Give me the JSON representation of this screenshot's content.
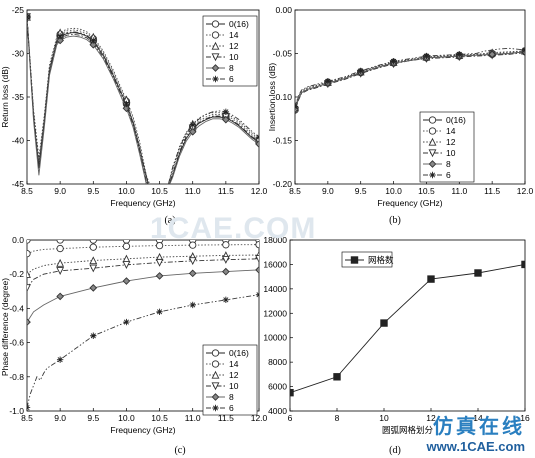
{
  "watermark": "1CAE.COM",
  "brand": {
    "chinese": "仿真在线",
    "url": "www.1CAE.com"
  },
  "chart_data": [
    {
      "type": "line",
      "panel": "(a)",
      "xlabel": "Frequency (GHz)",
      "ylabel": "Return loss (dB)",
      "xlim": [
        8.5,
        12.0
      ],
      "ylim": [
        -45,
        -25
      ],
      "xticks": [
        "8.5",
        "9.0",
        "9.5",
        "10.0",
        "10.5",
        "11.0",
        "11.5",
        "12.0"
      ],
      "yticks": [
        "-25",
        "-30",
        "-35",
        "-40",
        "-45"
      ],
      "legend_position": "top-right",
      "series": [
        {
          "name": "0(16)",
          "marker": "circle",
          "dash": "solid",
          "x": [
            8.5,
            8.6,
            8.68,
            8.76,
            8.84,
            8.95,
            9.0,
            9.1,
            9.2,
            9.3,
            9.4,
            9.5,
            9.65,
            9.8,
            9.95,
            10.0,
            10.1,
            10.2,
            10.33,
            10.4,
            10.5,
            10.6,
            10.7,
            10.8,
            10.9,
            11.0,
            11.1,
            11.2,
            11.3,
            11.4,
            11.5,
            11.6,
            11.7,
            11.8,
            11.9,
            12.0
          ],
          "y": [
            -25.8,
            -37.5,
            -43.0,
            -38.0,
            -32.0,
            -28.6,
            -28.1,
            -27.7,
            -27.6,
            -27.7,
            -28.0,
            -28.6,
            -30.2,
            -32.5,
            -35.0,
            -35.8,
            -38.0,
            -41.0,
            -45.0,
            -46,
            -46,
            -46,
            -44.0,
            -41.5,
            -39.8,
            -38.7,
            -38.0,
            -37.6,
            -37.3,
            -37.3,
            -37.4,
            -37.8,
            -38.3,
            -39.0,
            -39.7,
            -40.2
          ]
        },
        {
          "name": "14",
          "marker": "circle",
          "dash": "dot",
          "x": [
            8.5,
            8.6,
            8.68,
            8.76,
            8.84,
            8.95,
            9.0,
            9.1,
            9.2,
            9.3,
            9.4,
            9.5,
            9.65,
            9.8,
            9.95,
            10.0,
            10.1,
            10.2,
            10.3,
            10.4,
            10.5,
            10.6,
            10.7,
            10.8,
            10.9,
            11.0,
            11.1,
            11.2,
            11.3,
            11.4,
            11.5,
            11.6,
            11.7,
            11.8,
            11.9,
            12.0
          ],
          "y": [
            -25.8,
            -37.0,
            -42.5,
            -37.5,
            -31.6,
            -28.3,
            -27.8,
            -27.4,
            -27.3,
            -27.4,
            -27.7,
            -28.3,
            -29.9,
            -32.1,
            -34.7,
            -35.5,
            -37.6,
            -40.6,
            -44.5,
            -46,
            -46,
            -46,
            -43.5,
            -41.0,
            -39.4,
            -38.4,
            -37.7,
            -37.3,
            -37.0,
            -37.0,
            -37.1,
            -37.5,
            -38.0,
            -38.7,
            -39.4,
            -40.0
          ]
        },
        {
          "name": "12",
          "marker": "triangle-up",
          "dash": "dot",
          "x": [
            8.5,
            8.6,
            8.68,
            8.76,
            8.84,
            8.95,
            9.0,
            9.1,
            9.2,
            9.3,
            9.4,
            9.5,
            9.65,
            9.8,
            9.95,
            10.0,
            10.1,
            10.2,
            10.3,
            10.4,
            10.5,
            10.6,
            10.7,
            10.8,
            10.9,
            11.0,
            11.1,
            11.2,
            11.3,
            11.4,
            11.5,
            11.6,
            11.7,
            11.8,
            11.9,
            12.0
          ],
          "y": [
            -25.8,
            -36.5,
            -42.0,
            -37.2,
            -31.3,
            -28.1,
            -27.6,
            -27.2,
            -27.1,
            -27.2,
            -27.5,
            -28.1,
            -29.7,
            -31.9,
            -34.5,
            -35.3,
            -37.3,
            -40.2,
            -44.0,
            -46,
            -46,
            -46,
            -43.2,
            -40.7,
            -39.1,
            -38.1,
            -37.4,
            -37.0,
            -36.8,
            -36.8,
            -36.9,
            -37.3,
            -37.8,
            -38.5,
            -39.2,
            -39.8
          ]
        },
        {
          "name": "10",
          "marker": "triangle-down",
          "dash": "dashdot",
          "x": [
            8.5,
            8.6,
            8.68,
            8.76,
            8.84,
            8.95,
            9.0,
            9.1,
            9.2,
            9.3,
            9.4,
            9.5,
            9.65,
            9.8,
            9.95,
            10.0,
            10.1,
            10.2,
            10.3,
            10.4,
            10.5,
            10.6,
            10.7,
            10.8,
            10.9,
            11.0,
            11.1,
            11.2,
            11.3,
            11.4,
            11.5,
            11.6,
            11.7,
            11.8,
            11.9,
            12.0
          ],
          "y": [
            -25.8,
            -37.2,
            -43.5,
            -38.3,
            -32.3,
            -28.8,
            -28.3,
            -27.9,
            -27.8,
            -27.9,
            -28.2,
            -28.8,
            -30.4,
            -32.7,
            -35.2,
            -36.0,
            -38.2,
            -41.3,
            -45.0,
            -46,
            -46,
            -46,
            -43.8,
            -41.3,
            -39.6,
            -38.6,
            -37.9,
            -37.5,
            -37.2,
            -37.2,
            -37.3,
            -37.7,
            -38.2,
            -38.9,
            -39.6,
            -40.1
          ]
        },
        {
          "name": "8",
          "marker": "diamond",
          "dash": "solid",
          "x": [
            8.5,
            8.6,
            8.68,
            8.76,
            8.84,
            8.95,
            9.0,
            9.1,
            9.2,
            9.3,
            9.4,
            9.5,
            9.65,
            9.8,
            9.95,
            10.0,
            10.1,
            10.2,
            10.3,
            10.4,
            10.5,
            10.6,
            10.7,
            10.8,
            10.9,
            11.0,
            11.1,
            11.2,
            11.3,
            11.4,
            11.5,
            11.6,
            11.7,
            11.8,
            11.9,
            12.0
          ],
          "y": [
            -25.8,
            -37.8,
            -44.0,
            -38.6,
            -32.5,
            -29.0,
            -28.5,
            -28.1,
            -28.0,
            -28.1,
            -28.4,
            -29.0,
            -30.6,
            -32.9,
            -35.5,
            -36.3,
            -38.5,
            -41.6,
            -45.0,
            -46,
            -46,
            -46,
            -44.2,
            -41.8,
            -40.1,
            -39.0,
            -38.3,
            -37.8,
            -37.5,
            -37.5,
            -37.6,
            -38.0,
            -38.5,
            -39.2,
            -39.9,
            -40.4
          ]
        },
        {
          "name": "6",
          "marker": "star",
          "dash": "dashdotdot",
          "x": [
            8.5,
            8.6,
            8.68,
            8.76,
            8.84,
            8.95,
            9.0,
            9.1,
            9.2,
            9.3,
            9.4,
            9.5,
            9.65,
            9.8,
            9.95,
            10.0,
            10.1,
            10.2,
            10.3,
            10.4,
            10.5,
            10.6,
            10.7,
            10.8,
            10.9,
            11.0,
            11.1,
            11.2,
            11.3,
            11.4,
            11.5,
            11.6,
            11.7,
            11.8,
            11.9,
            12.0
          ],
          "y": [
            -25.8,
            -36.8,
            -42.8,
            -37.8,
            -31.8,
            -28.5,
            -28.0,
            -27.6,
            -27.5,
            -27.6,
            -27.9,
            -28.5,
            -30.1,
            -32.4,
            -35.0,
            -35.8,
            -37.9,
            -40.9,
            -44.7,
            -46,
            -46,
            -46,
            -43.0,
            -40.8,
            -39.2,
            -38.2,
            -37.5,
            -37.0,
            -36.7,
            -36.6,
            -36.7,
            -37.1,
            -37.6,
            -38.3,
            -39.0,
            -39.6
          ]
        }
      ]
    },
    {
      "type": "line",
      "panel": "(b)",
      "xlabel": "Frequency (GHz)",
      "ylabel": "Insertion loss (dB)",
      "xlim": [
        8.5,
        12.0
      ],
      "ylim": [
        -0.2,
        0.0
      ],
      "xticks": [
        "8.5",
        "9.0",
        "9.5",
        "10.0",
        "10.5",
        "11.0",
        "11.5",
        "12.0"
      ],
      "yticks": [
        "0.00",
        "-0.05",
        "-0.10",
        "-0.15",
        "-0.20"
      ],
      "legend_position": "bottom-center",
      "series": [
        {
          "name": "0(16)",
          "marker": "circle",
          "dash": "solid",
          "x": [
            8.5,
            8.55,
            8.6,
            8.7,
            8.8,
            9.0,
            9.25,
            9.5,
            9.75,
            10.0,
            10.25,
            10.5,
            10.75,
            11.0,
            11.25,
            11.5,
            11.75,
            12.0
          ],
          "y": [
            -0.115,
            -0.103,
            -0.095,
            -0.091,
            -0.089,
            -0.084,
            -0.079,
            -0.072,
            -0.066,
            -0.061,
            -0.058,
            -0.055,
            -0.054,
            -0.053,
            -0.052,
            -0.051,
            -0.05,
            -0.048
          ]
        },
        {
          "name": "14",
          "marker": "circle",
          "dash": "dot",
          "x": [
            8.5,
            8.55,
            8.6,
            8.7,
            8.8,
            9.0,
            9.25,
            9.5,
            9.75,
            10.0,
            10.25,
            10.5,
            10.75,
            11.0,
            11.25,
            11.5,
            11.75,
            12.0
          ],
          "y": [
            -0.113,
            -0.101,
            -0.094,
            -0.09,
            -0.088,
            -0.083,
            -0.078,
            -0.071,
            -0.065,
            -0.06,
            -0.057,
            -0.054,
            -0.053,
            -0.052,
            -0.051,
            -0.05,
            -0.049,
            -0.047
          ]
        },
        {
          "name": "12",
          "marker": "triangle-up",
          "dash": "dot",
          "x": [
            8.5,
            8.55,
            8.6,
            8.7,
            8.8,
            9.0,
            9.25,
            9.5,
            9.75,
            10.0,
            10.25,
            10.5,
            10.75,
            11.0,
            11.25,
            11.5,
            11.75,
            12.0
          ],
          "y": [
            -0.112,
            -0.1,
            -0.093,
            -0.089,
            -0.087,
            -0.083,
            -0.078,
            -0.071,
            -0.065,
            -0.06,
            -0.057,
            -0.054,
            -0.053,
            -0.052,
            -0.051,
            -0.049,
            -0.048,
            -0.047
          ]
        },
        {
          "name": "10",
          "marker": "triangle-down",
          "dash": "dashdot",
          "x": [
            8.5,
            8.55,
            8.6,
            8.7,
            8.8,
            9.0,
            9.25,
            9.5,
            9.75,
            10.0,
            10.25,
            10.5,
            10.75,
            11.0,
            11.25,
            11.5,
            11.75,
            12.0
          ],
          "y": [
            -0.116,
            -0.104,
            -0.096,
            -0.092,
            -0.09,
            -0.085,
            -0.08,
            -0.073,
            -0.067,
            -0.062,
            -0.058,
            -0.056,
            -0.055,
            -0.054,
            -0.053,
            -0.052,
            -0.051,
            -0.049
          ]
        },
        {
          "name": "8",
          "marker": "diamond",
          "dash": "solid",
          "x": [
            8.5,
            8.55,
            8.6,
            8.7,
            8.8,
            9.0,
            9.25,
            9.5,
            9.75,
            10.0,
            10.25,
            10.5,
            10.75,
            11.0,
            11.25,
            11.5,
            11.75,
            12.0
          ],
          "y": [
            -0.114,
            -0.102,
            -0.095,
            -0.091,
            -0.089,
            -0.084,
            -0.079,
            -0.072,
            -0.066,
            -0.061,
            -0.058,
            -0.055,
            -0.054,
            -0.053,
            -0.052,
            -0.051,
            -0.05,
            -0.048
          ]
        },
        {
          "name": "6",
          "marker": "star",
          "dash": "dashdotdot",
          "x": [
            8.5,
            8.55,
            8.6,
            8.7,
            8.8,
            9.0,
            9.25,
            9.5,
            9.75,
            10.0,
            10.25,
            10.5,
            10.75,
            11.0,
            11.25,
            11.4,
            11.6,
            11.75,
            12.0
          ],
          "y": [
            -0.111,
            -0.099,
            -0.092,
            -0.088,
            -0.086,
            -0.082,
            -0.077,
            -0.07,
            -0.064,
            -0.059,
            -0.056,
            -0.053,
            -0.052,
            -0.051,
            -0.05,
            -0.047,
            -0.045,
            -0.044,
            -0.046
          ]
        }
      ]
    },
    {
      "type": "line",
      "panel": "(c)",
      "xlabel": "Frequency (GHz)",
      "ylabel": "Phase difference (degree)",
      "xlim": [
        8.5,
        12.0
      ],
      "ylim": [
        -1.0,
        0.0
      ],
      "xticks": [
        "8.5",
        "9.0",
        "9.5",
        "10.0",
        "10.5",
        "11.0",
        "11.5",
        "12.0"
      ],
      "yticks": [
        "0.0",
        "-0.2",
        "-0.4",
        "-0.6",
        "-0.8",
        "-1.0"
      ],
      "legend_position": "bottom-right",
      "series": [
        {
          "name": "0(16)",
          "marker": "circle",
          "dash": "solid",
          "x": [
            8.5,
            9.0,
            9.5,
            10.0,
            10.5,
            11.0,
            11.5,
            12.0
          ],
          "y": [
            0.0,
            0.0,
            0.0,
            0.0,
            0.0,
            0.0,
            0.0,
            0.0
          ]
        },
        {
          "name": "14",
          "marker": "circle",
          "dash": "dot",
          "x": [
            8.5,
            8.6,
            8.75,
            9.0,
            9.5,
            10.0,
            10.5,
            11.0,
            11.5,
            12.0
          ],
          "y": [
            -0.08,
            -0.065,
            -0.055,
            -0.05,
            -0.042,
            -0.037,
            -0.033,
            -0.03,
            -0.028,
            -0.027
          ]
        },
        {
          "name": "12",
          "marker": "triangle-up",
          "dash": "dot",
          "x": [
            8.5,
            8.6,
            8.75,
            9.0,
            9.5,
            10.0,
            10.5,
            11.0,
            11.5,
            12.0
          ],
          "y": [
            -0.2,
            -0.17,
            -0.15,
            -0.135,
            -0.12,
            -0.11,
            -0.1,
            -0.095,
            -0.09,
            -0.088
          ]
        },
        {
          "name": "10",
          "marker": "triangle-down",
          "dash": "dashdot",
          "x": [
            8.5,
            8.6,
            8.75,
            9.0,
            9.5,
            10.0,
            10.5,
            11.0,
            11.5,
            12.0
          ],
          "y": [
            -0.28,
            -0.23,
            -0.2,
            -0.18,
            -0.165,
            -0.145,
            -0.132,
            -0.122,
            -0.115,
            -0.11
          ]
        },
        {
          "name": "8",
          "marker": "diamond",
          "dash": "solid",
          "x": [
            8.5,
            8.6,
            8.75,
            9.0,
            9.5,
            10.0,
            10.5,
            11.0,
            11.5,
            12.0
          ],
          "y": [
            -0.48,
            -0.42,
            -0.38,
            -0.33,
            -0.28,
            -0.24,
            -0.21,
            -0.195,
            -0.185,
            -0.175
          ]
        },
        {
          "name": "6",
          "marker": "star",
          "dash": "dashdotdot",
          "x": [
            8.5,
            8.55,
            8.6,
            8.65,
            8.7,
            8.75,
            8.8,
            9.0,
            9.5,
            10.0,
            10.5,
            11.0,
            11.5,
            12.0
          ],
          "y": [
            -0.98,
            -0.9,
            -0.85,
            -0.8,
            -0.82,
            -0.78,
            -0.75,
            -0.7,
            -0.56,
            -0.48,
            -0.42,
            -0.38,
            -0.35,
            -0.32
          ]
        }
      ]
    },
    {
      "type": "line",
      "panel": "(d)",
      "xlabel": "圆弧网格划分",
      "ylabel": "",
      "xlim": [
        6,
        16
      ],
      "ylim": [
        4000,
        18000
      ],
      "xticks": [
        "6",
        "8",
        "10",
        "12",
        "14",
        "16"
      ],
      "yticks": [
        "18000",
        "16000",
        "14000",
        "12000",
        "10000",
        "8000",
        "6000",
        "4000"
      ],
      "legend_position": "top-center",
      "series": [
        {
          "name": "网格数",
          "marker": "square",
          "dash": "solid",
          "x": [
            6,
            8,
            10,
            12,
            14,
            16
          ],
          "y": [
            5500,
            6800,
            11200,
            14800,
            15300,
            16000
          ]
        }
      ]
    }
  ]
}
